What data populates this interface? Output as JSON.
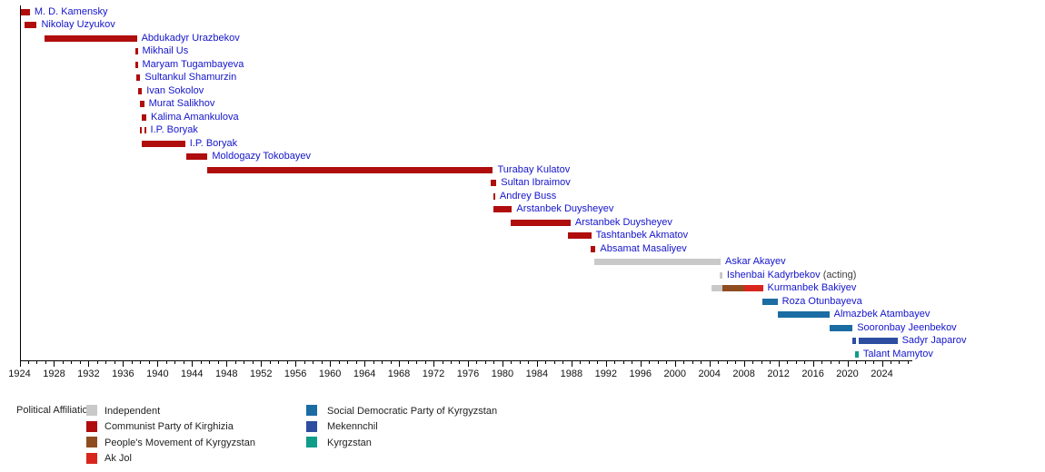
{
  "chart_data": {
    "type": "bar",
    "variant": "gantt-timeline",
    "title": "",
    "x_axis": {
      "min": 1924,
      "max": 2027.5,
      "tick_interval_years": 1,
      "label_interval_years": 4,
      "labels": [
        "1924",
        "1928",
        "1932",
        "1936",
        "1940",
        "1944",
        "1948",
        "1952",
        "1956",
        "1960",
        "1964",
        "1968",
        "1972",
        "1976",
        "1980",
        "1984",
        "1988",
        "1992",
        "1996",
        "2000",
        "2004",
        "2008",
        "2012",
        "2016",
        "2020",
        "2024"
      ]
    },
    "parties": {
      "independent": {
        "label": "Independent",
        "color": "#c9c9c9"
      },
      "communist": {
        "label": "Communist Party of Kirghizia",
        "color": "#b00d0d"
      },
      "pmk": {
        "label": "People's Movement of Kyrgyzstan",
        "color": "#8f4d1f"
      },
      "akjol": {
        "label": "Ak Jol",
        "color": "#d8261d"
      },
      "sdpk": {
        "label": "Social Democratic Party of Kyrgyzstan",
        "color": "#1b6ca3"
      },
      "mekenchil": {
        "label": "Mekennchil",
        "color": "#2c4da0"
      },
      "kyrgzstan": {
        "label": "Kyrgzstan",
        "color": "#0f9d8a"
      }
    },
    "people": [
      {
        "name": "M. D. Kamensky",
        "segments": [
          {
            "from": 1924.0,
            "to": 1925.2,
            "party": "communist"
          }
        ]
      },
      {
        "name": "Nikolay Uzyukov",
        "segments": [
          {
            "from": 1924.6,
            "to": 1926.0,
            "party": "communist"
          }
        ]
      },
      {
        "name": "Abdukadyr Urazbekov",
        "segments": [
          {
            "from": 1926.9,
            "to": 1937.6,
            "party": "communist"
          }
        ]
      },
      {
        "name": "Mikhail Us",
        "segments": [
          {
            "from": 1937.4,
            "to": 1937.7,
            "party": "communist"
          }
        ]
      },
      {
        "name": "Maryam Tugambayeva",
        "segments": [
          {
            "from": 1937.4,
            "to": 1937.7,
            "party": "communist"
          }
        ]
      },
      {
        "name": "Sultankul Shamurzin",
        "segments": [
          {
            "from": 1937.5,
            "to": 1938.0,
            "party": "communist"
          }
        ]
      },
      {
        "name": "Ivan Sokolov",
        "segments": [
          {
            "from": 1937.8,
            "to": 1938.2,
            "party": "communist"
          }
        ]
      },
      {
        "name": "Murat Salikhov",
        "segments": [
          {
            "from": 1938.0,
            "to": 1938.45,
            "party": "communist"
          }
        ]
      },
      {
        "name": "Kalima Amankulova",
        "segments": [
          {
            "from": 1938.2,
            "to": 1938.7,
            "party": "communist"
          }
        ]
      },
      {
        "name": "I.P. Boryak",
        "segments": [
          {
            "from": 1938.0,
            "to": 1938.2,
            "party": "communist"
          },
          {
            "from": 1938.45,
            "to": 1938.65,
            "party": "communist"
          }
        ]
      },
      {
        "name": "I.P. Boryak",
        "segments": [
          {
            "from": 1938.2,
            "to": 1943.2,
            "party": "communist"
          }
        ]
      },
      {
        "name": "Moldogazy Tokobayev",
        "segments": [
          {
            "from": 1943.3,
            "to": 1945.8,
            "party": "communist"
          }
        ]
      },
      {
        "name": "Turabay Kulatov",
        "segments": [
          {
            "from": 1945.8,
            "to": 1978.9,
            "party": "communist"
          }
        ]
      },
      {
        "name": "Sultan Ibraimov",
        "segments": [
          {
            "from": 1978.6,
            "to": 1979.3,
            "party": "communist"
          }
        ]
      },
      {
        "name": "Andrey Buss",
        "segments": [
          {
            "from": 1978.9,
            "to": 1979.15,
            "party": "communist"
          }
        ]
      },
      {
        "name": "Arstanbek Duysheyev",
        "segments": [
          {
            "from": 1978.9,
            "to": 1981.1,
            "party": "communist"
          }
        ]
      },
      {
        "name": "Arstanbek Duysheyev",
        "segments": [
          {
            "from": 1981.0,
            "to": 1987.9,
            "party": "communist"
          }
        ]
      },
      {
        "name": "Tashtanbek Akmatov",
        "segments": [
          {
            "from": 1987.6,
            "to": 1990.3,
            "party": "communist"
          }
        ]
      },
      {
        "name": "Absamat Masaliyev",
        "segments": [
          {
            "from": 1990.2,
            "to": 1990.8,
            "party": "communist"
          }
        ]
      },
      {
        "name": "Askar Akayev",
        "segments": [
          {
            "from": 1990.7,
            "to": 2005.3,
            "party": "independent"
          }
        ]
      },
      {
        "name": "Ishenbai Kadyrbekov",
        "note": " (acting)",
        "segments": [
          {
            "from": 2005.2,
            "to": 2005.5,
            "party": "independent"
          }
        ]
      },
      {
        "name": "Kurmanbek Bakiyev",
        "segments": [
          {
            "from": 2004.2,
            "to": 2005.5,
            "party": "independent"
          },
          {
            "from": 2005.5,
            "to": 2008.0,
            "party": "pmk"
          },
          {
            "from": 2008.0,
            "to": 2010.2,
            "party": "akjol"
          }
        ]
      },
      {
        "name": "Roza Otunbayeva",
        "segments": [
          {
            "from": 2010.1,
            "to": 2011.9,
            "party": "sdpk"
          }
        ]
      },
      {
        "name": "Almazbek Atambayev",
        "segments": [
          {
            "from": 2011.95,
            "to": 2017.9,
            "party": "sdpk"
          }
        ]
      },
      {
        "name": "Sooronbay Jeenbekov",
        "segments": [
          {
            "from": 2017.9,
            "to": 2020.6,
            "party": "sdpk"
          }
        ]
      },
      {
        "name": "Sadyr Japarov",
        "segments": [
          {
            "from": 2020.6,
            "to": 2021.0,
            "party": "mekenchil"
          },
          {
            "from": 2021.3,
            "to": 2025.8,
            "party": "mekenchil"
          }
        ]
      },
      {
        "name": "Talant Mamytov",
        "segments": [
          {
            "from": 2020.9,
            "to": 2021.3,
            "party": "kyrgzstan"
          }
        ]
      }
    ],
    "legend": {
      "title": "Political Affiliation:",
      "columns": [
        [
          "independent",
          "communist",
          "pmk",
          "akjol"
        ],
        [
          "sdpk",
          "mekenchil",
          "kyrgzstan"
        ]
      ]
    }
  },
  "styles": {
    "name_color": "#1414cc",
    "note_color": "#3c3c3c",
    "axis_color": "#000000",
    "background": "#ffffff"
  }
}
